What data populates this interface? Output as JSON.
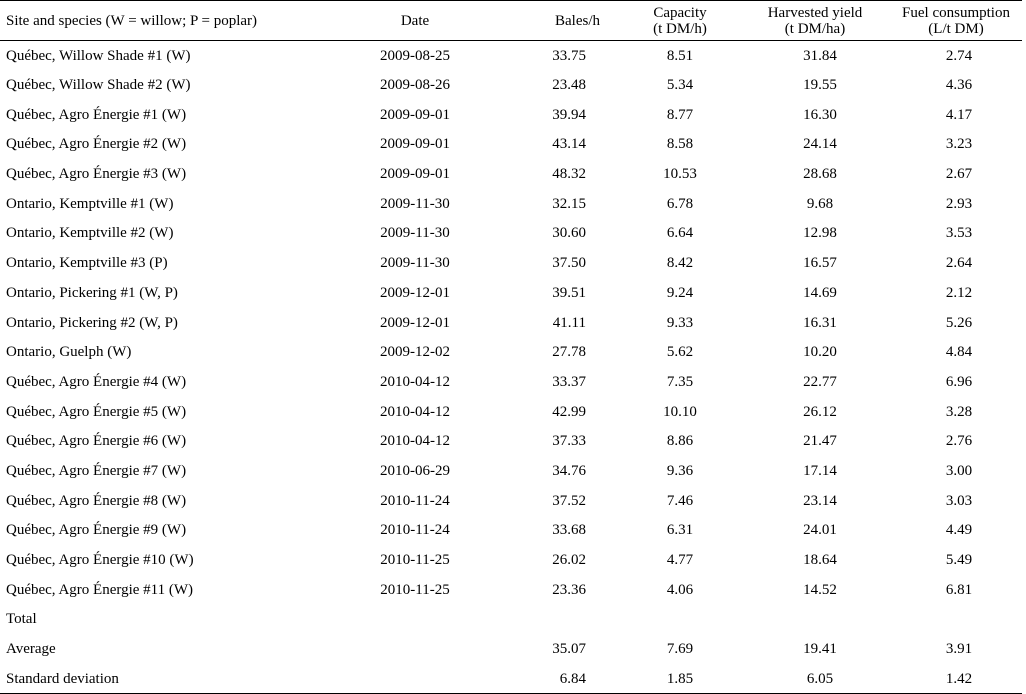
{
  "table": {
    "headers": {
      "site": "Site and species (W = willow; P = poplar)",
      "date": "Date",
      "bales": "Bales/h",
      "capacity_line1": "Capacity",
      "capacity_line2": "(t DM/h)",
      "yield_line1": "Harvested yield",
      "yield_line2": "(t DM/ha)",
      "fuel_line1": "Fuel consumption",
      "fuel_line2": "(L/t DM)"
    },
    "rows": [
      {
        "site": "Québec, Willow Shade #1 (W)",
        "date": "2009-08-25",
        "bales": "33.75",
        "capacity": "8.51",
        "yield": "31.84",
        "fuel": "2.74"
      },
      {
        "site": "Québec, Willow Shade #2 (W)",
        "date": "2009-08-26",
        "bales": "23.48",
        "capacity": "5.34",
        "yield": "19.55",
        "fuel": "4.36"
      },
      {
        "site": "Québec, Agro Énergie #1 (W)",
        "date": "2009-09-01",
        "bales": "39.94",
        "capacity": "8.77",
        "yield": "16.30",
        "fuel": "4.17"
      },
      {
        "site": "Québec, Agro Énergie #2 (W)",
        "date": "2009-09-01",
        "bales": "43.14",
        "capacity": "8.58",
        "yield": "24.14",
        "fuel": "3.23"
      },
      {
        "site": "Québec, Agro Énergie #3 (W)",
        "date": "2009-09-01",
        "bales": "48.32",
        "capacity": "10.53",
        "yield": "28.68",
        "fuel": "2.67"
      },
      {
        "site": "Ontario, Kemptville #1 (W)",
        "date": "2009-11-30",
        "bales": "32.15",
        "capacity": "6.78",
        "yield": "9.68",
        "fuel": "2.93"
      },
      {
        "site": "Ontario, Kemptville #2 (W)",
        "date": "2009-11-30",
        "bales": "30.60",
        "capacity": "6.64",
        "yield": "12.98",
        "fuel": "3.53"
      },
      {
        "site": "Ontario, Kemptville #3 (P)",
        "date": "2009-11-30",
        "bales": "37.50",
        "capacity": "8.42",
        "yield": "16.57",
        "fuel": "2.64"
      },
      {
        "site": "Ontario, Pickering #1 (W, P)",
        "date": "2009-12-01",
        "bales": "39.51",
        "capacity": "9.24",
        "yield": "14.69",
        "fuel": "2.12"
      },
      {
        "site": "Ontario, Pickering #2 (W, P)",
        "date": "2009-12-01",
        "bales": "41.11",
        "capacity": "9.33",
        "yield": "16.31",
        "fuel": "5.26"
      },
      {
        "site": "Ontario, Guelph (W)",
        "date": "2009-12-02",
        "bales": "27.78",
        "capacity": "5.62",
        "yield": "10.20",
        "fuel": "4.84"
      },
      {
        "site": "Québec, Agro Énergie #4 (W)",
        "date": "2010-04-12",
        "bales": "33.37",
        "capacity": "7.35",
        "yield": "22.77",
        "fuel": "6.96"
      },
      {
        "site": "Québec, Agro Énergie #5 (W)",
        "date": "2010-04-12",
        "bales": "42.99",
        "capacity": "10.10",
        "yield": "26.12",
        "fuel": "3.28"
      },
      {
        "site": "Québec, Agro Énergie #6 (W)",
        "date": "2010-04-12",
        "bales": "37.33",
        "capacity": "8.86",
        "yield": "21.47",
        "fuel": "2.76"
      },
      {
        "site": "Québec, Agro Énergie #7 (W)",
        "date": "2010-06-29",
        "bales": "34.76",
        "capacity": "9.36",
        "yield": "17.14",
        "fuel": "3.00"
      },
      {
        "site": "Québec, Agro Énergie #8 (W)",
        "date": "2010-11-24",
        "bales": "37.52",
        "capacity": "7.46",
        "yield": "23.14",
        "fuel": "3.03"
      },
      {
        "site": "Québec, Agro Énergie #9 (W)",
        "date": "2010-11-24",
        "bales": "33.68",
        "capacity": "6.31",
        "yield": "24.01",
        "fuel": "4.49"
      },
      {
        "site": "Québec, Agro Énergie #10 (W)",
        "date": "2010-11-25",
        "bales": "26.02",
        "capacity": "4.77",
        "yield": "18.64",
        "fuel": "5.49"
      },
      {
        "site": "Québec, Agro Énergie #11 (W)",
        "date": "2010-11-25",
        "bales": "23.36",
        "capacity": "4.06",
        "yield": "14.52",
        "fuel": "6.81"
      },
      {
        "site": "Total",
        "date": "",
        "bales": "",
        "capacity": "",
        "yield": "",
        "fuel": ""
      },
      {
        "site": "Average",
        "date": "",
        "bales": "35.07",
        "capacity": "7.69",
        "yield": "19.41",
        "fuel": "3.91"
      },
      {
        "site": "Standard deviation",
        "date": "",
        "bales": "6.84",
        "capacity": "1.85",
        "yield": "6.05",
        "fuel": "1.42"
      }
    ]
  }
}
